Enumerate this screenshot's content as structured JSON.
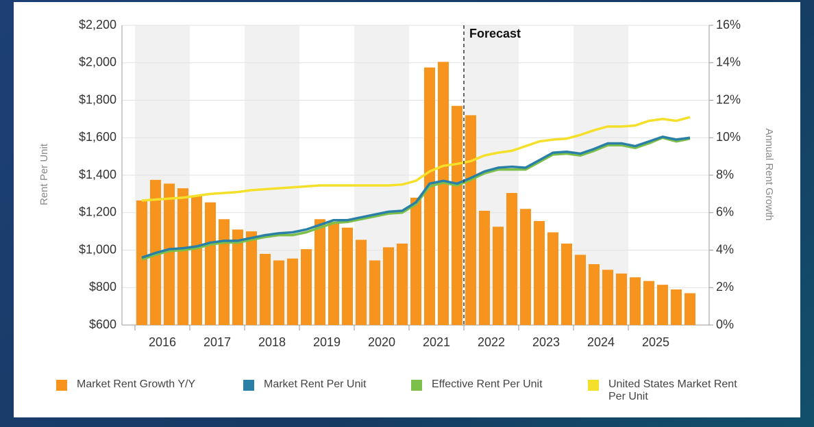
{
  "chart_data": {
    "type": "bar-line",
    "ylabel": "Rent Per Unit",
    "y2label": "Annual Rent Growth",
    "annotation": "Forecast",
    "x_labels": [
      "2016",
      "2017",
      "2018",
      "2019",
      "2020",
      "2021",
      "2022",
      "2023",
      "2024",
      "2025"
    ],
    "ylim": [
      600,
      2200
    ],
    "yticks": [
      {
        "value": 600,
        "label": "$600"
      },
      {
        "value": 800,
        "label": "$800"
      },
      {
        "value": 1000,
        "label": "$1,000"
      },
      {
        "value": 1200,
        "label": "$1,200"
      },
      {
        "value": 1400,
        "label": "$1,400"
      },
      {
        "value": 1600,
        "label": "$1,600"
      },
      {
        "value": 1800,
        "label": "$1,800"
      },
      {
        "value": 2000,
        "label": "$2,000"
      },
      {
        "value": 2200,
        "label": "$2,200"
      }
    ],
    "y2lim": [
      0,
      16
    ],
    "y2ticks": [
      {
        "value": 0,
        "label": "0%"
      },
      {
        "value": 2,
        "label": "2%"
      },
      {
        "value": 4,
        "label": "4%"
      },
      {
        "value": 6,
        "label": "6%"
      },
      {
        "value": 8,
        "label": "8%"
      },
      {
        "value": 10,
        "label": "10%"
      },
      {
        "value": 12,
        "label": "12%"
      },
      {
        "value": 14,
        "label": "14%"
      },
      {
        "value": 16,
        "label": "16%"
      }
    ],
    "grid": true,
    "series": [
      {
        "name": "Market Rent Growth Y/Y",
        "type": "bar",
        "axis": "y2",
        "color": "#f7941d",
        "values": [
          6.65,
          7.75,
          7.55,
          7.3,
          6.9,
          6.55,
          5.65,
          5.1,
          5.0,
          3.8,
          3.45,
          3.55,
          4.05,
          5.65,
          5.5,
          5.2,
          4.55,
          3.45,
          4.15,
          4.35,
          6.8,
          13.75,
          14.05,
          11.7,
          11.2,
          6.1,
          5.25,
          7.05,
          6.2,
          5.55,
          4.95,
          4.35,
          3.75,
          3.25,
          2.95,
          2.75,
          2.55,
          2.35,
          2.15,
          1.9,
          1.7
        ]
      },
      {
        "name": "Market Rent Per Unit",
        "type": "line",
        "axis": "y",
        "color": "#2a7fa6",
        "values": [
          960,
          985,
          1005,
          1010,
          1020,
          1040,
          1050,
          1050,
          1065,
          1080,
          1090,
          1095,
          1110,
          1135,
          1160,
          1160,
          1175,
          1190,
          1205,
          1210,
          1255,
          1355,
          1370,
          1355,
          1385,
          1420,
          1440,
          1445,
          1440,
          1480,
          1520,
          1525,
          1515,
          1540,
          1570,
          1570,
          1555,
          1580,
          1605,
          1590,
          1600
        ]
      },
      {
        "name": "Effective Rent Per Unit",
        "type": "line",
        "axis": "y",
        "color": "#7cbf4a",
        "values": [
          950,
          975,
          995,
          1000,
          1010,
          1030,
          1040,
          1040,
          1055,
          1070,
          1080,
          1080,
          1095,
          1120,
          1145,
          1150,
          1165,
          1180,
          1195,
          1200,
          1245,
          1340,
          1360,
          1345,
          1375,
          1410,
          1430,
          1430,
          1430,
          1470,
          1510,
          1515,
          1505,
          1530,
          1560,
          1560,
          1545,
          1570,
          1600,
          1580,
          1595
        ]
      },
      {
        "name": "United States Market Rent Per Unit",
        "type": "line",
        "axis": "y",
        "color": "#f4e02a",
        "values": [
          1265,
          1270,
          1275,
          1280,
          1290,
          1300,
          1305,
          1310,
          1320,
          1325,
          1330,
          1335,
          1340,
          1345,
          1345,
          1345,
          1345,
          1345,
          1345,
          1350,
          1370,
          1420,
          1450,
          1460,
          1475,
          1505,
          1520,
          1530,
          1555,
          1580,
          1590,
          1595,
          1615,
          1640,
          1660,
          1660,
          1665,
          1690,
          1700,
          1690,
          1710
        ]
      }
    ]
  }
}
